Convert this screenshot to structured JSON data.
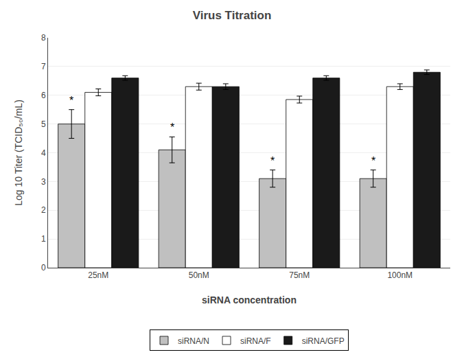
{
  "chart_data": {
    "type": "bar",
    "title": "Virus Titration",
    "xlabel": "siRNA concentration",
    "ylabel": "Log 10 Titer (TCID₅₀/mL)",
    "categories": [
      "25nM",
      "50nM",
      "75nM",
      "100nM"
    ],
    "series": [
      {
        "name": "siRNA/N",
        "color": "#c0c0c0",
        "values": [
          5.0,
          4.1,
          3.1,
          3.1
        ],
        "errors": [
          0.5,
          0.45,
          0.3,
          0.3
        ]
      },
      {
        "name": "siRNA/F",
        "color": "#ffffff",
        "values": [
          6.1,
          6.3,
          5.85,
          6.3
        ],
        "errors": [
          0.12,
          0.12,
          0.12,
          0.1
        ]
      },
      {
        "name": "siRNA/GFP",
        "color": "#1a1a1a",
        "values": [
          6.6,
          6.3,
          6.6,
          6.8
        ],
        "errors": [
          0.08,
          0.1,
          0.08,
          0.08
        ]
      }
    ],
    "ylim": [
      0,
      8
    ],
    "yticks": [
      0,
      1,
      2,
      3,
      4,
      5,
      6,
      7,
      8
    ],
    "grid": true,
    "legend": "bottom",
    "annotations": [
      {
        "text": "*",
        "series": "siRNA/N",
        "category": "25nM"
      },
      {
        "text": "*",
        "series": "siRNA/N",
        "category": "50nM"
      },
      {
        "text": "*",
        "series": "siRNA/N",
        "category": "75nM"
      },
      {
        "text": "*",
        "series": "siRNA/N",
        "category": "100nM"
      }
    ]
  }
}
